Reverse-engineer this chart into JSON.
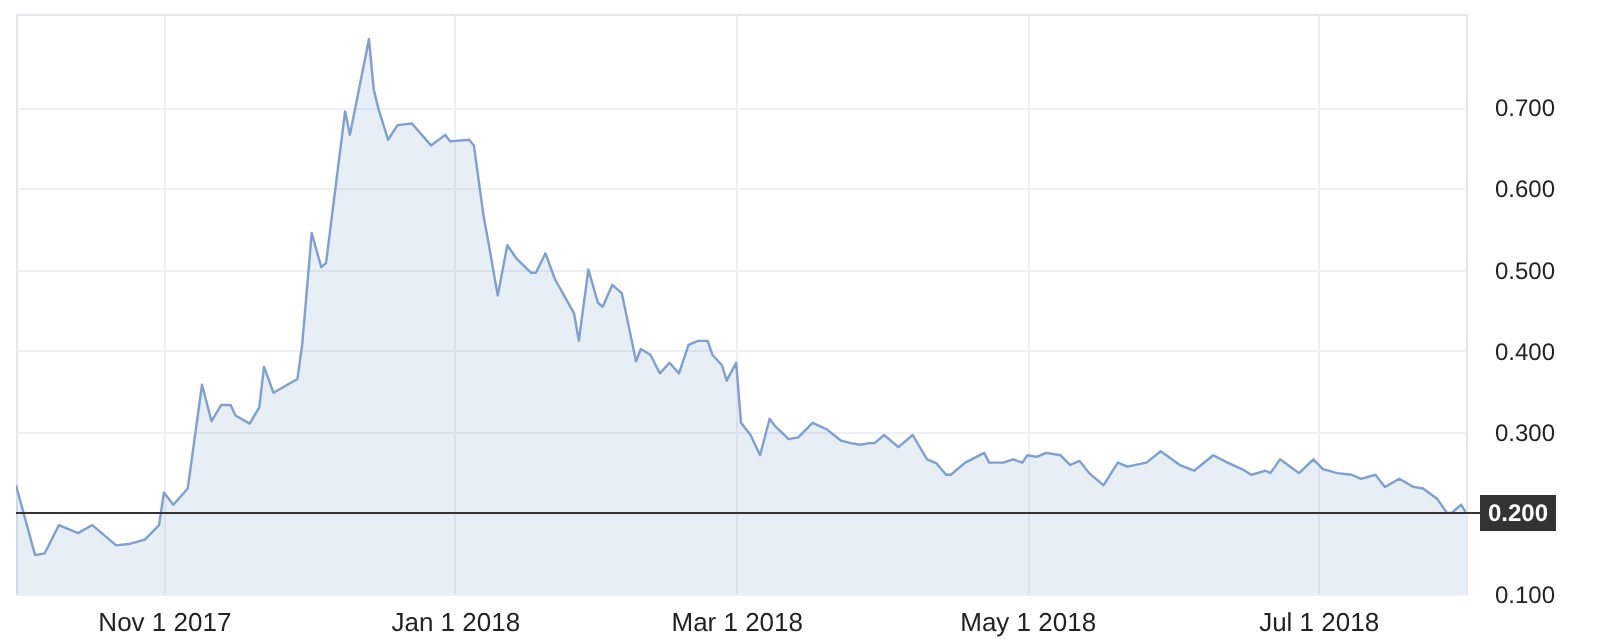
{
  "chart_data": {
    "type": "area",
    "x": [
      "2017-10-01",
      "2017-10-05",
      "2017-10-07",
      "2017-10-10",
      "2017-10-14",
      "2017-10-17",
      "2017-10-22",
      "2017-10-25",
      "2017-10-28",
      "2017-10-31",
      "2017-11-01",
      "2017-11-03",
      "2017-11-06",
      "2017-11-09",
      "2017-11-11",
      "2017-11-13",
      "2017-11-15",
      "2017-11-16",
      "2017-11-19",
      "2017-11-21",
      "2017-11-22",
      "2017-11-24",
      "2017-11-29",
      "2017-11-30",
      "2017-12-02",
      "2017-12-04",
      "2017-12-05",
      "2017-12-09",
      "2017-12-10",
      "2017-12-14",
      "2017-12-15",
      "2017-12-16",
      "2017-12-18",
      "2017-12-20",
      "2017-12-23",
      "2017-12-27",
      "2017-12-30",
      "2017-12-31",
      "2018-01-04",
      "2018-01-05",
      "2018-01-07",
      "2018-01-08",
      "2018-01-10",
      "2018-01-12",
      "2018-01-14",
      "2018-01-17",
      "2018-01-18",
      "2018-01-20",
      "2018-01-22",
      "2018-01-26",
      "2018-01-27",
      "2018-01-29",
      "2018-01-31",
      "2018-02-01",
      "2018-02-03",
      "2018-02-05",
      "2018-02-08",
      "2018-02-09",
      "2018-02-11",
      "2018-02-13",
      "2018-02-15",
      "2018-02-17",
      "2018-02-19",
      "2018-02-21",
      "2018-02-23",
      "2018-02-24",
      "2018-02-26",
      "2018-02-27",
      "2018-03-01",
      "2018-03-02",
      "2018-03-04",
      "2018-03-06",
      "2018-03-08",
      "2018-03-09",
      "2018-03-12",
      "2018-03-14",
      "2018-03-17",
      "2018-03-20",
      "2018-03-23",
      "2018-03-25",
      "2018-03-27",
      "2018-03-29",
      "2018-03-30",
      "2018-04-01",
      "2018-04-04",
      "2018-04-07",
      "2018-04-10",
      "2018-04-12",
      "2018-04-14",
      "2018-04-15",
      "2018-04-18",
      "2018-04-22",
      "2018-04-23",
      "2018-04-26",
      "2018-04-28",
      "2018-04-30",
      "2018-05-01",
      "2018-05-03",
      "2018-05-05",
      "2018-05-08",
      "2018-05-10",
      "2018-05-12",
      "2018-05-14",
      "2018-05-17",
      "2018-05-20",
      "2018-05-22",
      "2018-05-26",
      "2018-05-29",
      "2018-06-02",
      "2018-06-05",
      "2018-06-09",
      "2018-06-12",
      "2018-06-15",
      "2018-06-17",
      "2018-06-20",
      "2018-06-21",
      "2018-06-23",
      "2018-06-27",
      "2018-06-30",
      "2018-07-02",
      "2018-07-05",
      "2018-07-08",
      "2018-07-10",
      "2018-07-13",
      "2018-07-15",
      "2018-07-18",
      "2018-07-21",
      "2018-07-23",
      "2018-07-26",
      "2018-07-28",
      "2018-07-29",
      "2018-07-31",
      "2018-08-01"
    ],
    "series": [
      {
        "color": "#7f9fcf",
        "values": [
          0.234,
          0.148,
          0.15,
          0.185,
          0.175,
          0.185,
          0.16,
          0.162,
          0.167,
          0.185,
          0.225,
          0.21,
          0.23,
          0.358,
          0.313,
          0.333,
          0.333,
          0.32,
          0.31,
          0.33,
          0.38,
          0.348,
          0.365,
          0.407,
          0.545,
          0.503,
          0.508,
          0.695,
          0.666,
          0.784,
          0.722,
          0.698,
          0.66,
          0.678,
          0.68,
          0.653,
          0.666,
          0.658,
          0.66,
          0.653,
          0.567,
          0.535,
          0.468,
          0.53,
          0.513,
          0.496,
          0.496,
          0.52,
          0.488,
          0.446,
          0.412,
          0.5,
          0.459,
          0.454,
          0.481,
          0.471,
          0.387,
          0.402,
          0.395,
          0.372,
          0.385,
          0.372,
          0.407,
          0.412,
          0.412,
          0.395,
          0.382,
          0.363,
          0.385,
          0.311,
          0.296,
          0.271,
          0.316,
          0.308,
          0.291,
          0.293,
          0.311,
          0.303,
          0.289,
          0.286,
          0.284,
          0.286,
          0.286,
          0.296,
          0.281,
          0.296,
          0.266,
          0.261,
          0.247,
          0.247,
          0.262,
          0.274,
          0.262,
          0.262,
          0.266,
          0.262,
          0.271,
          0.269,
          0.274,
          0.271,
          0.259,
          0.264,
          0.249,
          0.234,
          0.262,
          0.257,
          0.262,
          0.276,
          0.259,
          0.252,
          0.271,
          0.262,
          0.254,
          0.247,
          0.252,
          0.249,
          0.266,
          0.249,
          0.266,
          0.254,
          0.249,
          0.247,
          0.242,
          0.247,
          0.232,
          0.242,
          0.232,
          0.23,
          0.217,
          0.2,
          0.2,
          0.21,
          0.2
        ]
      }
    ],
    "xlim": [
      "2017-10-01",
      "2018-08-01"
    ],
    "xticks": [
      {
        "value": "2017-11-01",
        "label": "Nov 1 2017"
      },
      {
        "value": "2018-01-01",
        "label": "Jan 1 2018"
      },
      {
        "value": "2018-03-01",
        "label": "Mar 1 2018"
      },
      {
        "value": "2018-05-01",
        "label": "May 1 2018"
      },
      {
        "value": "2018-07-01",
        "label": "Jul 1 2018"
      }
    ],
    "ylim": [
      0.1,
      0.815
    ],
    "yticks": [
      {
        "value": 0.1,
        "label": "0.100"
      },
      {
        "value": 0.3,
        "label": "0.300"
      },
      {
        "value": 0.4,
        "label": "0.400"
      },
      {
        "value": 0.5,
        "label": "0.500"
      },
      {
        "value": 0.6,
        "label": "0.600"
      },
      {
        "value": 0.7,
        "label": "0.700"
      }
    ],
    "ref_lines": [
      {
        "axis": "y",
        "value": 0.2,
        "label": "0.200",
        "color": "#333333"
      }
    ],
    "grid": true
  }
}
